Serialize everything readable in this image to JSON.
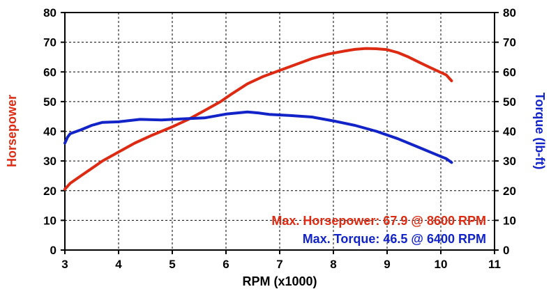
{
  "chart_data": {
    "type": "line",
    "title": "",
    "xlabel": "RPM (x1000)",
    "ylabel_left": "Horsepower",
    "ylabel_right": "Torque (lb-ft)",
    "xlim": [
      3,
      11
    ],
    "ylim_left": [
      0,
      80
    ],
    "ylim_right": [
      0,
      80
    ],
    "x_ticks": [
      "3",
      "4",
      "5",
      "6",
      "7",
      "8",
      "9",
      "10",
      "11"
    ],
    "y_ticks_left": [
      "0",
      "10",
      "20",
      "30",
      "40",
      "50",
      "60",
      "70",
      "80"
    ],
    "y_ticks_right": [
      "0",
      "10",
      "20",
      "30",
      "40",
      "50",
      "60",
      "70",
      "80"
    ],
    "grid": "dashed",
    "legend": "none",
    "series": [
      {
        "name": "Horsepower",
        "axis": "left",
        "color": "#dd2a12",
        "x": [
          3.0,
          3.1,
          3.3,
          3.5,
          3.7,
          4.0,
          4.3,
          4.6,
          4.8,
          5.0,
          5.3,
          5.6,
          5.9,
          6.1,
          6.4,
          6.7,
          7.0,
          7.3,
          7.6,
          7.9,
          8.2,
          8.4,
          8.6,
          8.8,
          9.0,
          9.2,
          9.4,
          9.6,
          9.8,
          10.0,
          10.1,
          10.2
        ],
        "values": [
          20.5,
          22.5,
          25,
          27.5,
          30,
          33,
          36,
          38.5,
          40,
          41.5,
          44,
          47,
          50,
          52.5,
          56,
          58.5,
          60.5,
          62.5,
          64.5,
          66,
          67,
          67.6,
          67.9,
          67.8,
          67.5,
          66.5,
          65,
          63.2,
          61.5,
          59.8,
          59,
          57
        ]
      },
      {
        "name": "Torque",
        "axis": "right",
        "color": "#1223c8",
        "x": [
          3.0,
          3.05,
          3.1,
          3.3,
          3.5,
          3.7,
          4.0,
          4.4,
          4.8,
          5.2,
          5.6,
          6.0,
          6.4,
          6.6,
          6.8,
          7.2,
          7.6,
          8.0,
          8.4,
          8.8,
          9.2,
          9.6,
          10.0,
          10.1,
          10.2
        ],
        "values": [
          36,
          38,
          39.2,
          40.5,
          42,
          43,
          43.2,
          44,
          43.8,
          44.2,
          44.5,
          45.8,
          46.5,
          46.2,
          45.7,
          45.3,
          44.8,
          43.5,
          42,
          40,
          37.5,
          34.5,
          31.5,
          30.8,
          29.5
        ]
      }
    ],
    "annotations": [
      {
        "text": "Max. Horsepower: 67.9 @ 8600 RPM",
        "color": "#dd2a12"
      },
      {
        "text": "Max. Torque: 46.5 @ 6400 RPM",
        "color": "#1223c8"
      }
    ]
  }
}
